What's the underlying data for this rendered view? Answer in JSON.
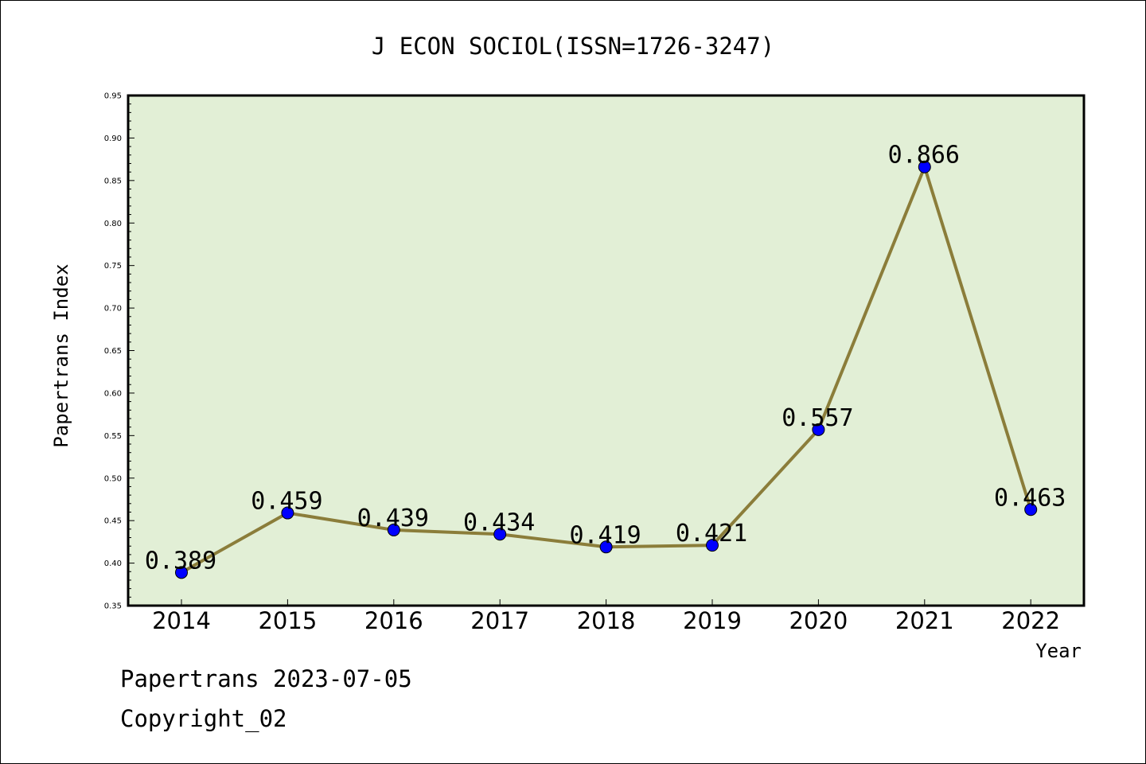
{
  "footer": {
    "line1": "Papertrans 2023-07-05",
    "line2": "Copyright_02"
  },
  "chart_data": {
    "type": "line",
    "title": "J ECON SOCIOL(ISSN=1726-3247)",
    "xlabel": "Year",
    "ylabel": "Papertrans Index",
    "categories": [
      "2014",
      "2015",
      "2016",
      "2017",
      "2018",
      "2019",
      "2020",
      "2021",
      "2022"
    ],
    "series": [
      {
        "values": [
          0.389,
          0.459,
          0.439,
          0.434,
          0.419,
          0.421,
          0.557,
          0.866,
          0.463
        ]
      }
    ],
    "data_labels": [
      "0.389",
      "0.459",
      "0.439",
      "0.434",
      "0.419",
      "0.421",
      "0.557",
      "0.866",
      "0.463"
    ],
    "ylim": [
      0.35,
      0.95
    ],
    "yticks": [
      "0.35",
      "0.40",
      "0.45",
      "0.50",
      "0.55",
      "0.60",
      "0.65",
      "0.70",
      "0.75",
      "0.80",
      "0.85",
      "0.90",
      "0.95"
    ],
    "grid": false,
    "colors": {
      "plot_background": "#e2efd6",
      "line": "#8b7d3a",
      "marker": "#0000ff"
    }
  }
}
